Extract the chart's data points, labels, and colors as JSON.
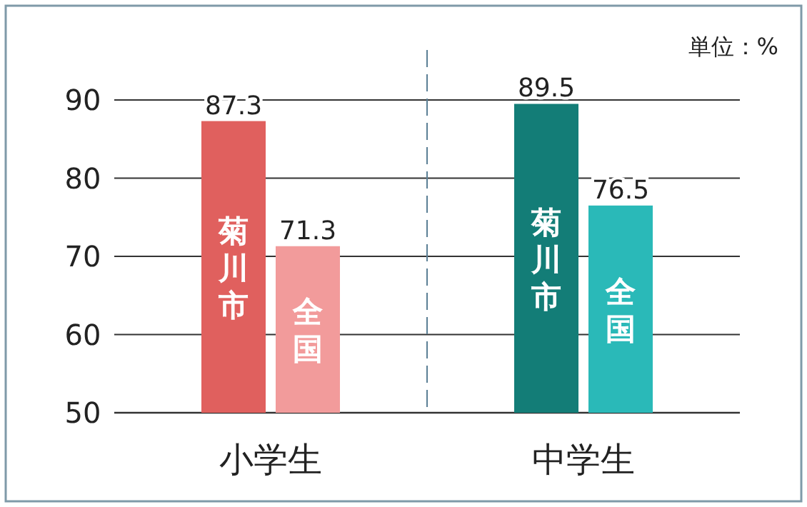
{
  "chart_data": {
    "type": "bar",
    "categories": [
      "小学生",
      "中学生"
    ],
    "series": [
      {
        "name": "菊川市",
        "colors": [
          "#e0605e",
          "#137d77"
        ],
        "values": [
          87.3,
          89.5
        ]
      },
      {
        "name": "全国",
        "colors": [
          "#f29b9b",
          "#2ab9b8"
        ],
        "values": [
          71.3,
          76.5
        ]
      }
    ],
    "ylim": [
      50,
      90
    ],
    "yticks": [
      50,
      60,
      70,
      80,
      90
    ],
    "grid": "y",
    "data_labels": true,
    "annotations": [
      "単位：%"
    ]
  }
}
